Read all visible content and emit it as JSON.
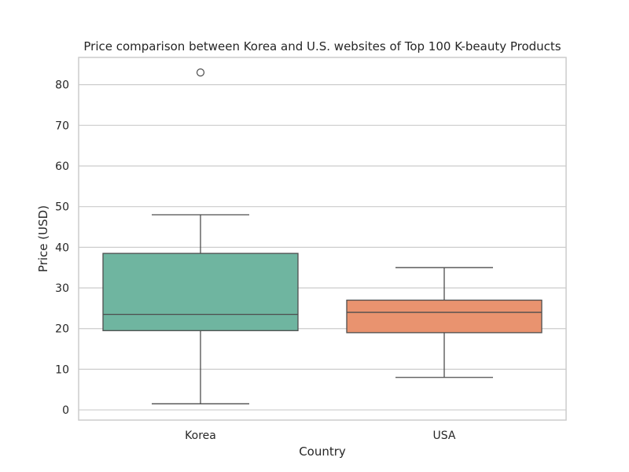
{
  "chart_data": {
    "type": "box",
    "title": "Price comparison between Korea and U.S. websites of Top 100 K-beauty Products",
    "xlabel": "Country",
    "ylabel": "Price (USD)",
    "categories": [
      "Korea",
      "USA"
    ],
    "ylim": [
      -2.5,
      86.7
    ],
    "yticks": [
      0,
      10,
      20,
      30,
      40,
      50,
      60,
      70,
      80
    ],
    "grid": true,
    "boxes": [
      {
        "category": "Korea",
        "whisker_low": 1.5,
        "q1": 19.5,
        "median": 23.5,
        "q3": 38.5,
        "whisker_high": 48,
        "outliers": [
          83
        ],
        "color": "#6fb5a0"
      },
      {
        "category": "USA",
        "whisker_low": 8,
        "q1": 19,
        "median": 24,
        "q3": 27,
        "whisker_high": 35,
        "outliers": [],
        "color": "#e9936f"
      }
    ]
  }
}
